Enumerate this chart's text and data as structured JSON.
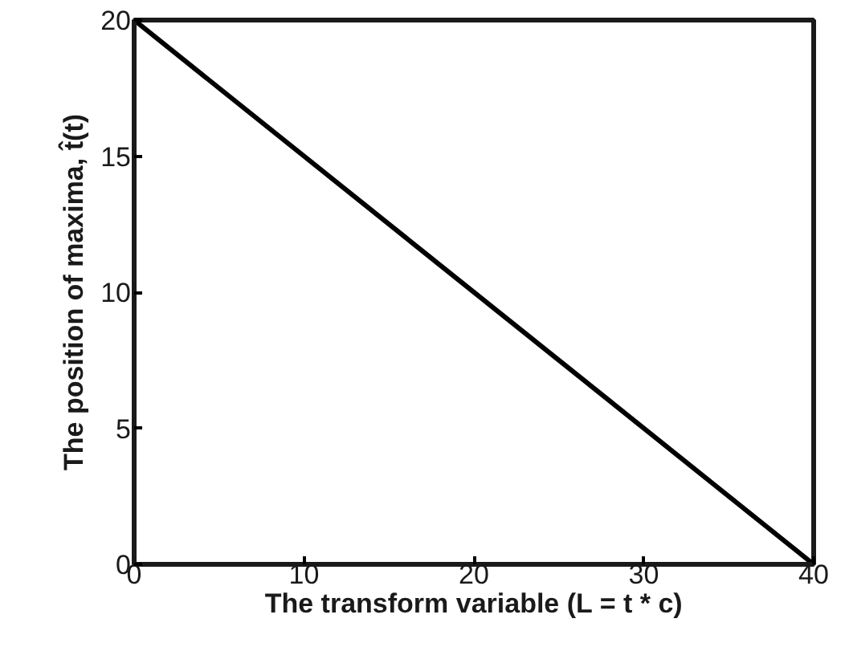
{
  "chart_data": {
    "type": "line",
    "xlabel": "The transform variable (L = t * c)",
    "ylabel": "The position of maxima, t̂(t)",
    "x": [
      0,
      40
    ],
    "values": [
      20,
      0
    ],
    "color": "#000000",
    "xlim": [
      0,
      40
    ],
    "ylim": [
      0,
      20
    ],
    "xticks": [
      0,
      10,
      20,
      30,
      40
    ],
    "yticks": [
      0,
      5,
      10,
      15,
      20
    ],
    "grid": false,
    "marker": "none",
    "line_style": "solid"
  }
}
